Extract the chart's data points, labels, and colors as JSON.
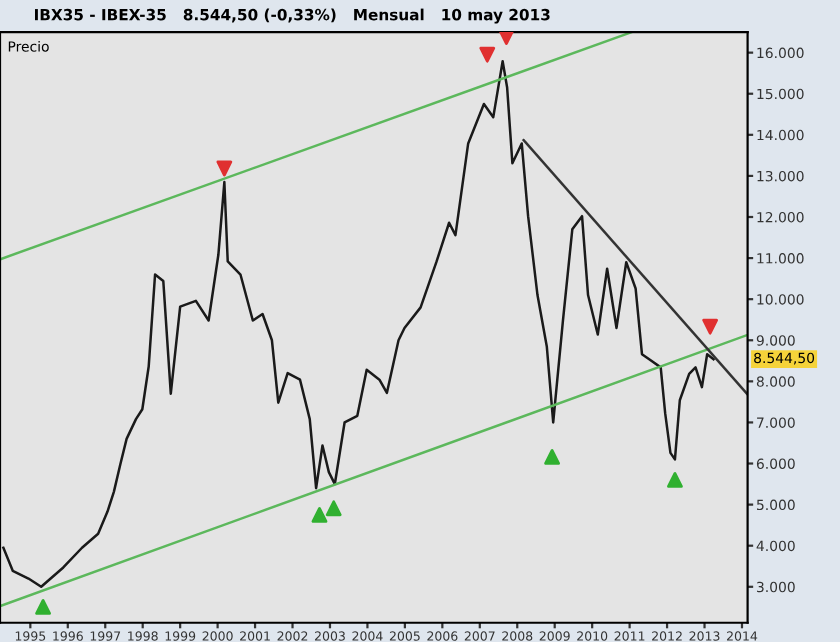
{
  "chart_data": {
    "type": "line",
    "title": "IBX35 - IBEX-35   8.544,50 (-0,33%)   Mensual   10 may 2013",
    "ylabel": "Precio",
    "annotations": [
      "8.544,50"
    ],
    "xlim": [
      1994.19,
      2014.15
    ],
    "ylim": [
      2125,
      16500
    ],
    "xticks": [
      {
        "value": 1995,
        "label": "1995"
      },
      {
        "value": 1996,
        "label": "1996"
      },
      {
        "value": 1997,
        "label": "1997"
      },
      {
        "value": 1998,
        "label": "1998"
      },
      {
        "value": 1999,
        "label": "1999"
      },
      {
        "value": 2000,
        "label": "2000"
      },
      {
        "value": 2001,
        "label": "2001"
      },
      {
        "value": 2002,
        "label": "2002"
      },
      {
        "value": 2003,
        "label": "2003"
      },
      {
        "value": 2004,
        "label": "2004"
      },
      {
        "value": 2005,
        "label": "2005"
      },
      {
        "value": 2006,
        "label": "2006"
      },
      {
        "value": 2007,
        "label": "2007"
      },
      {
        "value": 2008,
        "label": "2008"
      },
      {
        "value": 2009,
        "label": "2009"
      },
      {
        "value": 2010,
        "label": "2010"
      },
      {
        "value": 2011,
        "label": "2011"
      },
      {
        "value": 2012,
        "label": "2012"
      },
      {
        "value": 2013,
        "label": "2013"
      },
      {
        "value": 2014,
        "label": "2014"
      }
    ],
    "yticks": [
      {
        "value": 3000,
        "label": "3.000"
      },
      {
        "value": 4000,
        "label": "4.000"
      },
      {
        "value": 5000,
        "label": "5.000"
      },
      {
        "value": 6000,
        "label": "6.000"
      },
      {
        "value": 7000,
        "label": "7.000"
      },
      {
        "value": 8000,
        "label": "8.000"
      },
      {
        "value": 9000,
        "label": "9.000"
      },
      {
        "value": 10000,
        "label": "10.000"
      },
      {
        "value": 11000,
        "label": "11.000"
      },
      {
        "value": 12000,
        "label": "12.000"
      },
      {
        "value": 13000,
        "label": "13.000"
      },
      {
        "value": 14000,
        "label": "14.000"
      },
      {
        "value": 15000,
        "label": "15.000"
      },
      {
        "value": 16000,
        "label": "16.000"
      }
    ],
    "grid": false,
    "legend": false,
    "series": [
      {
        "color": "#1a1a1a",
        "x": [
          1994.28,
          1994.53,
          1994.95,
          1995.29,
          1995.88,
          1996.38,
          1996.81,
          1997.06,
          1997.23,
          1997.4,
          1997.57,
          1997.82,
          1997.99,
          1998.16,
          1998.33,
          1998.55,
          1998.75,
          1999.0,
          1999.42,
          1999.76,
          2000.02,
          2000.18,
          2000.27,
          2000.61,
          2000.94,
          2001.2,
          2001.45,
          2001.62,
          2001.87,
          2002.2,
          2002.46,
          2002.63,
          2002.8,
          2002.97,
          2003.13,
          2003.39,
          2003.73,
          2003.98,
          2004.32,
          2004.52,
          2004.83,
          2004.99,
          2005.42,
          2005.84,
          2006.18,
          2006.35,
          2006.69,
          2007.11,
          2007.36,
          2007.61,
          2007.73,
          2007.87,
          2008.12,
          2008.29,
          2008.54,
          2008.79,
          2008.96,
          2009.22,
          2009.47,
          2009.73,
          2009.89,
          2010.15,
          2010.4,
          2010.65,
          2010.91,
          2011.16,
          2011.33,
          2011.58,
          2011.83,
          2011.95,
          2012.09,
          2012.21,
          2012.34,
          2012.59,
          2012.76,
          2012.93,
          2013.07,
          2013.24
        ],
        "values": [
          3950,
          3390,
          3200,
          3000,
          3470,
          3950,
          4290,
          4830,
          5310,
          5970,
          6600,
          7080,
          7320,
          8360,
          10600,
          10440,
          7700,
          9820,
          9960,
          9480,
          11080,
          12850,
          10920,
          10600,
          9480,
          9640,
          9000,
          7480,
          8200,
          8040,
          7080,
          5400,
          6440,
          5790,
          5500,
          7000,
          7160,
          8280,
          8040,
          7720,
          9000,
          9300,
          9800,
          10900,
          11860,
          11560,
          13790,
          14750,
          14430,
          15790,
          15150,
          13310,
          13790,
          12020,
          10100,
          8840,
          7000,
          9480,
          11700,
          12020,
          10100,
          9140,
          10740,
          9300,
          10900,
          10260,
          8660,
          8500,
          8340,
          7220,
          6260,
          6100,
          7540,
          8180,
          8340,
          7860,
          8660,
          8540
        ],
        "marker": "none",
        "line_style": "solid"
      },
      {
        "color": "#5cb85c",
        "x": [
          1994.19,
          2011.06
        ],
        "values": [
          10970,
          16500
        ],
        "marker": "none",
        "line_style": "solid"
      },
      {
        "color": "#5cb85c",
        "x": [
          1994.19,
          2014.15
        ],
        "values": [
          2530,
          9130
        ],
        "marker": "none",
        "line_style": "solid"
      },
      {
        "color": "#333333",
        "x": [
          2008.17,
          2014.15
        ],
        "values": [
          13870,
          7680
        ],
        "marker": "none",
        "line_style": "solid"
      },
      {
        "type": "scatter",
        "color": "#e03030",
        "x": [
          2000.18,
          2007.2,
          2007.71,
          2013.15
        ],
        "values": [
          13180,
          15950,
          16380,
          9330
        ],
        "marker": "triangle"
      },
      {
        "type": "scatter",
        "color": "#30b030",
        "x": [
          1995.34,
          2002.72,
          2003.1,
          2008.93,
          2012.21
        ],
        "values": [
          2510,
          4750,
          4910,
          6160,
          5600
        ],
        "marker": "triangle"
      }
    ]
  }
}
